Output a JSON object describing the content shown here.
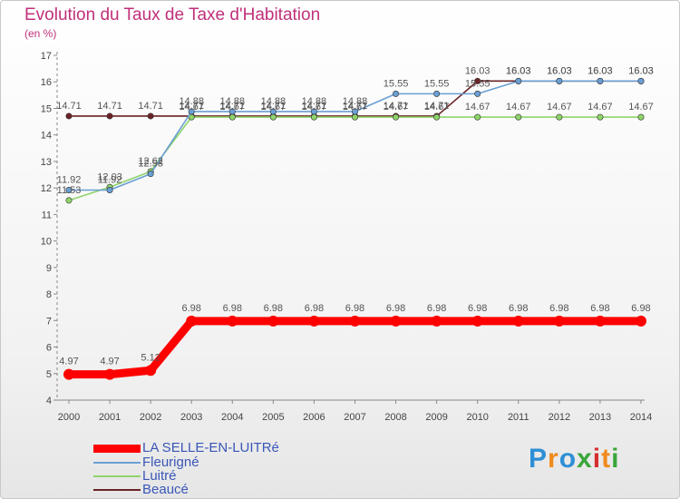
{
  "title": "Evolution du Taux de Taxe d'Habitation",
  "ylabel": "(en %)",
  "brand": "Proxiti",
  "chart_data": {
    "type": "line",
    "title": "Evolution du Taux de Taxe d'Habitation",
    "ylabel": "(en %)",
    "xlabel": "",
    "ylim": [
      4,
      17
    ],
    "yticks": [
      4,
      5,
      6,
      7,
      8,
      9,
      10,
      11,
      12,
      13,
      14,
      15,
      16,
      17
    ],
    "grid": false,
    "legend_position": "bottom",
    "x": [
      "2000",
      "2001",
      "2002",
      "2003",
      "2004",
      "2005",
      "2006",
      "2007",
      "2008",
      "2009",
      "2010",
      "2011",
      "2012",
      "2013",
      "2014"
    ],
    "series": [
      {
        "name": "LA SELLE-EN-LUITRé",
        "color": "#ff0000",
        "values": [
          4.97,
          4.97,
          5.12,
          6.98,
          6.98,
          6.98,
          6.98,
          6.98,
          6.98,
          6.98,
          6.98,
          6.98,
          6.98,
          6.98,
          6.98
        ],
        "labels": [
          "4.97",
          "4.97",
          "5.12",
          "6.98",
          "6.98",
          "6.98",
          "6.98",
          "6.98",
          "6.98",
          "6.98",
          "6.98",
          "6.98",
          "6.98",
          "6.98",
          "6.98"
        ]
      },
      {
        "name": "Fleurigné",
        "color": "#6a9fd4",
        "values": [
          11.92,
          11.92,
          12.53,
          14.88,
          14.88,
          14.88,
          14.88,
          14.88,
          15.55,
          15.55,
          15.55,
          16.03,
          16.03,
          16.03,
          16.03
        ],
        "labels": [
          "11.92",
          "11.92",
          "12.53",
          "14.88",
          "14.88",
          "14.88",
          "14.88",
          "14.88",
          "15.55",
          "15.55",
          "15.55",
          "16.03",
          "16.03",
          "16.03",
          "16.03"
        ]
      },
      {
        "name": "Luitré",
        "color": "#8fd46a",
        "values": [
          11.53,
          12.03,
          12.62,
          14.67,
          14.67,
          14.67,
          14.67,
          14.67,
          14.67,
          14.67,
          14.67,
          14.67,
          14.67,
          14.67,
          14.67
        ],
        "labels": [
          "11.53",
          "12.03",
          "12.62",
          "14.67",
          "14.67",
          "14.67",
          "14.67",
          "14.67",
          "14.67",
          "14.67",
          "14.67",
          "14.67",
          "14.67",
          "14.67",
          "14.67"
        ]
      },
      {
        "name": "Beaucé",
        "color": "#6b2226",
        "values": [
          14.71,
          14.71,
          14.71,
          14.71,
          14.71,
          14.71,
          14.71,
          14.71,
          14.71,
          14.71,
          16.03,
          16.03,
          16.03,
          16.03,
          16.03
        ],
        "labels": [
          "14.71",
          "14.71",
          "14.71",
          "14.71",
          "14.71",
          "14.71",
          "14.71",
          "14.71",
          "14.71",
          "14.71",
          "16.03",
          "16.03",
          "16.03",
          "16.03",
          "16.03"
        ]
      }
    ]
  }
}
